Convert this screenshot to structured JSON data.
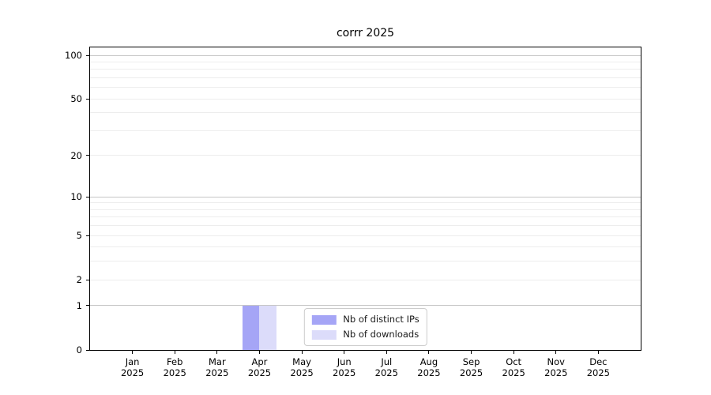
{
  "chart_data": {
    "type": "bar",
    "title": "corrr 2025",
    "categories": [
      "Jan",
      "Feb",
      "Mar",
      "Apr",
      "May",
      "Jun",
      "Jul",
      "Aug",
      "Sep",
      "Oct",
      "Nov",
      "Dec"
    ],
    "x_year": "2025",
    "series": [
      {
        "name": "Nb of distinct IPs",
        "color": "#a5a5f6",
        "values": [
          0,
          0,
          0,
          1,
          0,
          0,
          0,
          0,
          0,
          0,
          0,
          0
        ]
      },
      {
        "name": "Nb of downloads",
        "color": "#dcdcfa",
        "values": [
          0,
          0,
          0,
          1,
          0,
          0,
          0,
          0,
          0,
          0,
          0,
          0
        ]
      }
    ],
    "y_axis": {
      "scale": "log1p",
      "ticks": [
        0,
        1,
        2,
        5,
        10,
        20,
        50,
        100
      ],
      "top_value": 113
    },
    "grid": {
      "orientation": "horizontal",
      "major_values": [
        1,
        10,
        100
      ],
      "minor_values": [
        2,
        3,
        4,
        5,
        6,
        7,
        8,
        9,
        20,
        30,
        40,
        50,
        60,
        70,
        80,
        90
      ]
    },
    "legend": {
      "position": "lower center"
    },
    "colors": {
      "spine": "#000000",
      "grid_major": "#c6c6c6",
      "grid_minor": "#ededed",
      "legend_border": "#cccccc",
      "background": "#ffffff",
      "text": "#000000"
    }
  }
}
